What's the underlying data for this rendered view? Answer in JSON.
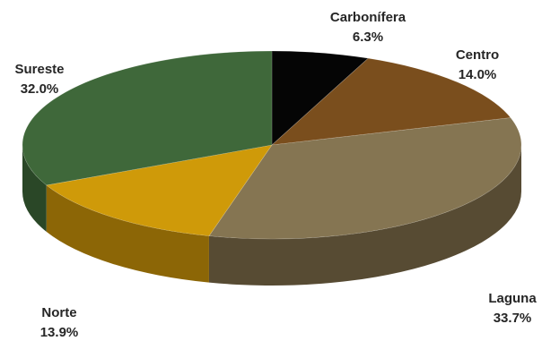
{
  "chart_data": {
    "type": "pie",
    "style": "3d",
    "title": "",
    "legend": "none",
    "slices": [
      {
        "label": "Carbonífera",
        "value": 6.3,
        "value_label": "6.3%",
        "color": "#050505",
        "side_color": "#000000"
      },
      {
        "label": "Centro",
        "value": 14.0,
        "value_label": "14.0%",
        "color": "#7a4e1d",
        "side_color": "#4d3010"
      },
      {
        "label": "Laguna",
        "value": 33.7,
        "value_label": "33.7%",
        "color": "#857552",
        "side_color": "#574b33"
      },
      {
        "label": "Norte",
        "value": 13.9,
        "value_label": "13.9%",
        "color": "#cf9a09",
        "side_color": "#8c6606"
      },
      {
        "label": "Sureste",
        "value": 32.0,
        "value_label": "32.0%",
        "color": "#3f683a",
        "side_color": "#2a4727"
      }
    ]
  }
}
